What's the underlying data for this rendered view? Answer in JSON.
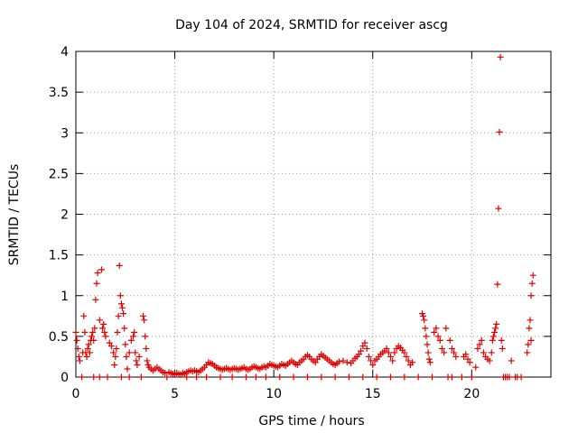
{
  "chart_data": {
    "type": "scatter",
    "title": "Day 104 of 2024, SRMTID for receiver ascg",
    "xlabel": "GPS time / hours",
    "ylabel": "SRMTID / TECUs",
    "xlim": [
      0,
      24
    ],
    "ylim": [
      0,
      4
    ],
    "x_ticks": [
      0,
      5,
      10,
      15,
      20
    ],
    "x_tick_labels": [
      "0",
      "5",
      "10",
      "15",
      "20"
    ],
    "y_ticks": [
      0,
      0.5,
      1,
      1.5,
      2,
      2.5,
      3,
      3.5,
      4
    ],
    "y_tick_labels": [
      "0",
      "0.5",
      "1",
      "1.5",
      "2",
      "2.5",
      "3",
      "3.5",
      "4"
    ],
    "grid": true,
    "marker": "+",
    "color": "#e00000",
    "series": [
      {
        "name": "SRMTID",
        "points": [
          [
            0.0,
            0.55
          ],
          [
            0.05,
            0.45
          ],
          [
            0.1,
            0.35
          ],
          [
            0.15,
            0.25
          ],
          [
            0.2,
            0.2
          ],
          [
            0.3,
            0.0
          ],
          [
            0.35,
            0.3
          ],
          [
            0.4,
            0.75
          ],
          [
            0.45,
            0.55
          ],
          [
            0.5,
            0.3
          ],
          [
            0.55,
            0.25
          ],
          [
            0.6,
            0.35
          ],
          [
            0.65,
            0.4
          ],
          [
            0.7,
            0.3
          ],
          [
            0.75,
            0.45
          ],
          [
            0.8,
            0.5
          ],
          [
            0.85,
            0.55
          ],
          [
            0.9,
            0.45
          ],
          [
            0.95,
            0.6
          ],
          [
            1.0,
            0.95
          ],
          [
            1.05,
            1.15
          ],
          [
            1.1,
            1.28
          ],
          [
            1.2,
            0.7
          ],
          [
            1.3,
            1.32
          ],
          [
            1.35,
            0.6
          ],
          [
            1.4,
            0.65
          ],
          [
            1.45,
            0.55
          ],
          [
            1.5,
            0.5
          ],
          [
            0.9,
            0.0
          ],
          [
            1.2,
            0.0
          ],
          [
            1.6,
            0.0
          ],
          [
            1.7,
            0.42
          ],
          [
            1.8,
            0.38
          ],
          [
            1.9,
            0.3
          ],
          [
            1.95,
            0.15
          ],
          [
            2.0,
            0.25
          ],
          [
            2.05,
            0.35
          ],
          [
            2.1,
            0.55
          ],
          [
            2.15,
            0.75
          ],
          [
            2.2,
            1.37
          ],
          [
            2.25,
            1.0
          ],
          [
            2.3,
            0.9
          ],
          [
            2.35,
            0.85
          ],
          [
            2.4,
            0.78
          ],
          [
            2.45,
            0.6
          ],
          [
            2.5,
            0.4
          ],
          [
            2.55,
            0.25
          ],
          [
            2.6,
            0.1
          ],
          [
            2.3,
            0.0
          ],
          [
            2.7,
            0.0
          ],
          [
            2.7,
            0.3
          ],
          [
            2.8,
            0.45
          ],
          [
            2.9,
            0.5
          ],
          [
            2.95,
            0.55
          ],
          [
            3.0,
            0.3
          ],
          [
            3.05,
            0.2
          ],
          [
            3.1,
            0.15
          ],
          [
            3.2,
            0.25
          ],
          [
            3.3,
            0.0
          ],
          [
            3.4,
            0.75
          ],
          [
            3.45,
            0.7
          ],
          [
            3.5,
            0.5
          ],
          [
            3.55,
            0.35
          ],
          [
            3.6,
            0.2
          ],
          [
            3.65,
            0.15
          ],
          [
            3.7,
            0.12
          ],
          [
            3.8,
            0.1
          ],
          [
            3.9,
            0.08
          ],
          [
            4.0,
            0.1
          ],
          [
            4.1,
            0.12
          ],
          [
            4.2,
            0.1
          ],
          [
            4.3,
            0.08
          ],
          [
            4.4,
            0.06
          ],
          [
            4.5,
            0.05
          ],
          [
            4.6,
            0.0
          ],
          [
            4.7,
            0.06
          ],
          [
            4.8,
            0.05
          ],
          [
            4.9,
            0.04
          ],
          [
            5.0,
            0.03
          ],
          [
            5.1,
            0.05
          ],
          [
            5.2,
            0.04
          ],
          [
            5.3,
            0.03
          ],
          [
            5.4,
            0.05
          ],
          [
            5.5,
            0.04
          ],
          [
            5.6,
            0.06
          ],
          [
            5.7,
            0.07
          ],
          [
            5.8,
            0.08
          ],
          [
            5.9,
            0.07
          ],
          [
            6.0,
            0.08
          ],
          [
            6.1,
            0.07
          ],
          [
            6.2,
            0.06
          ],
          [
            6.3,
            0.08
          ],
          [
            6.4,
            0.1
          ],
          [
            6.5,
            0.12
          ],
          [
            6.6,
            0.15
          ],
          [
            6.7,
            0.18
          ],
          [
            6.8,
            0.17
          ],
          [
            6.9,
            0.16
          ],
          [
            7.0,
            0.14
          ],
          [
            7.1,
            0.12
          ],
          [
            7.2,
            0.11
          ],
          [
            7.3,
            0.1
          ],
          [
            7.4,
            0.09
          ],
          [
            7.5,
            0.1
          ],
          [
            7.6,
            0.11
          ],
          [
            7.7,
            0.1
          ],
          [
            7.8,
            0.09
          ],
          [
            7.9,
            0.1
          ],
          [
            8.0,
            0.11
          ],
          [
            8.1,
            0.1
          ],
          [
            8.2,
            0.09
          ],
          [
            8.3,
            0.1
          ],
          [
            8.4,
            0.11
          ],
          [
            8.5,
            0.12
          ],
          [
            8.6,
            0.1
          ],
          [
            8.7,
            0.09
          ],
          [
            8.8,
            0.1
          ],
          [
            8.9,
            0.12
          ],
          [
            9.0,
            0.13
          ],
          [
            9.1,
            0.12
          ],
          [
            9.2,
            0.11
          ],
          [
            9.3,
            0.1
          ],
          [
            9.4,
            0.12
          ],
          [
            9.5,
            0.13
          ],
          [
            9.6,
            0.12
          ],
          [
            9.7,
            0.14
          ],
          [
            9.8,
            0.16
          ],
          [
            9.9,
            0.15
          ],
          [
            10.0,
            0.14
          ],
          [
            10.1,
            0.13
          ],
          [
            10.2,
            0.12
          ],
          [
            10.3,
            0.14
          ],
          [
            10.4,
            0.16
          ],
          [
            10.5,
            0.15
          ],
          [
            10.6,
            0.14
          ],
          [
            10.7,
            0.16
          ],
          [
            10.8,
            0.18
          ],
          [
            10.9,
            0.2
          ],
          [
            11.0,
            0.18
          ],
          [
            11.1,
            0.16
          ],
          [
            11.2,
            0.15
          ],
          [
            11.3,
            0.18
          ],
          [
            11.4,
            0.2
          ],
          [
            11.5,
            0.22
          ],
          [
            11.6,
            0.25
          ],
          [
            11.7,
            0.27
          ],
          [
            11.8,
            0.25
          ],
          [
            11.9,
            0.22
          ],
          [
            12.0,
            0.2
          ],
          [
            12.1,
            0.18
          ],
          [
            12.2,
            0.22
          ],
          [
            12.3,
            0.25
          ],
          [
            12.4,
            0.28
          ],
          [
            12.5,
            0.26
          ],
          [
            12.6,
            0.24
          ],
          [
            12.7,
            0.22
          ],
          [
            12.8,
            0.2
          ],
          [
            12.9,
            0.18
          ],
          [
            13.0,
            0.16
          ],
          [
            13.1,
            0.15
          ],
          [
            13.2,
            0.17
          ],
          [
            13.3,
            0.19
          ],
          [
            13.5,
            0.2
          ],
          [
            13.7,
            0.18
          ],
          [
            13.9,
            0.17
          ],
          [
            14.0,
            0.2
          ],
          [
            14.1,
            0.23
          ],
          [
            14.2,
            0.25
          ],
          [
            14.3,
            0.28
          ],
          [
            14.4,
            0.32
          ],
          [
            14.5,
            0.38
          ],
          [
            14.6,
            0.42
          ],
          [
            14.7,
            0.35
          ],
          [
            14.8,
            0.25
          ],
          [
            14.9,
            0.2
          ],
          [
            15.0,
            0.15
          ],
          [
            15.1,
            0.2
          ],
          [
            15.2,
            0.22
          ],
          [
            15.3,
            0.25
          ],
          [
            15.4,
            0.28
          ],
          [
            15.5,
            0.3
          ],
          [
            15.6,
            0.32
          ],
          [
            15.7,
            0.35
          ],
          [
            15.8,
            0.3
          ],
          [
            15.9,
            0.25
          ],
          [
            16.0,
            0.2
          ],
          [
            16.1,
            0.3
          ],
          [
            16.2,
            0.35
          ],
          [
            16.3,
            0.38
          ],
          [
            16.4,
            0.36
          ],
          [
            16.5,
            0.33
          ],
          [
            16.6,
            0.3
          ],
          [
            16.7,
            0.25
          ],
          [
            16.8,
            0.2
          ],
          [
            16.9,
            0.15
          ],
          [
            17.0,
            0.18
          ],
          [
            17.5,
            0.78
          ],
          [
            17.55,
            0.75
          ],
          [
            17.6,
            0.7
          ],
          [
            17.65,
            0.6
          ],
          [
            17.7,
            0.5
          ],
          [
            17.75,
            0.4
          ],
          [
            17.8,
            0.3
          ],
          [
            17.85,
            0.22
          ],
          [
            17.9,
            0.18
          ],
          [
            18.0,
            0.0
          ],
          [
            18.1,
            0.55
          ],
          [
            18.2,
            0.6
          ],
          [
            18.3,
            0.5
          ],
          [
            18.4,
            0.45
          ],
          [
            18.5,
            0.35
          ],
          [
            18.6,
            0.3
          ],
          [
            18.7,
            0.6
          ],
          [
            18.8,
            0.0
          ],
          [
            18.9,
            0.45
          ],
          [
            19.0,
            0.35
          ],
          [
            19.1,
            0.3
          ],
          [
            19.2,
            0.25
          ],
          [
            19.5,
            0.0
          ],
          [
            19.6,
            0.25
          ],
          [
            19.7,
            0.28
          ],
          [
            19.8,
            0.22
          ],
          [
            19.9,
            0.18
          ],
          [
            20.0,
            0.0
          ],
          [
            20.2,
            0.12
          ],
          [
            20.3,
            0.35
          ],
          [
            20.4,
            0.4
          ],
          [
            20.5,
            0.45
          ],
          [
            20.6,
            0.3
          ],
          [
            20.7,
            0.25
          ],
          [
            20.8,
            0.22
          ],
          [
            20.9,
            0.2
          ],
          [
            21.0,
            0.3
          ],
          [
            21.05,
            0.45
          ],
          [
            21.1,
            0.5
          ],
          [
            21.15,
            0.55
          ],
          [
            21.2,
            0.6
          ],
          [
            21.25,
            0.65
          ],
          [
            21.3,
            1.14
          ],
          [
            21.35,
            2.07
          ],
          [
            21.4,
            3.01
          ],
          [
            21.45,
            3.93
          ],
          [
            21.5,
            0.45
          ],
          [
            21.55,
            0.35
          ],
          [
            21.6,
            0.0
          ],
          [
            22.0,
            0.2
          ],
          [
            22.2,
            0.0
          ],
          [
            22.5,
            0.0
          ],
          [
            22.8,
            0.3
          ],
          [
            22.85,
            0.4
          ],
          [
            22.9,
            0.6
          ],
          [
            22.95,
            0.7
          ],
          [
            23.0,
            1.0
          ],
          [
            23.05,
            1.15
          ],
          [
            23.1,
            1.25
          ],
          [
            23.0,
            0.45
          ],
          [
            21.7,
            0.0
          ],
          [
            21.8,
            0.0
          ],
          [
            21.9,
            0.0
          ],
          [
            22.3,
            0.0
          ],
          [
            5.6,
            0.0
          ],
          [
            6.1,
            0.0
          ],
          [
            6.6,
            0.0
          ],
          [
            7.3,
            0.0
          ],
          [
            7.9,
            0.0
          ],
          [
            8.6,
            0.0
          ],
          [
            9.1,
            0.0
          ],
          [
            9.6,
            0.0
          ],
          [
            10.3,
            0.0
          ],
          [
            11.0,
            0.0
          ],
          [
            11.7,
            0.0
          ],
          [
            12.4,
            0.0
          ],
          [
            13.1,
            0.0
          ],
          [
            13.8,
            0.0
          ],
          [
            14.5,
            0.0
          ],
          [
            15.2,
            0.0
          ],
          [
            15.9,
            0.0
          ],
          [
            16.6,
            0.0
          ],
          [
            17.3,
            0.0
          ],
          [
            19.0,
            0.0
          ]
        ]
      }
    ]
  }
}
